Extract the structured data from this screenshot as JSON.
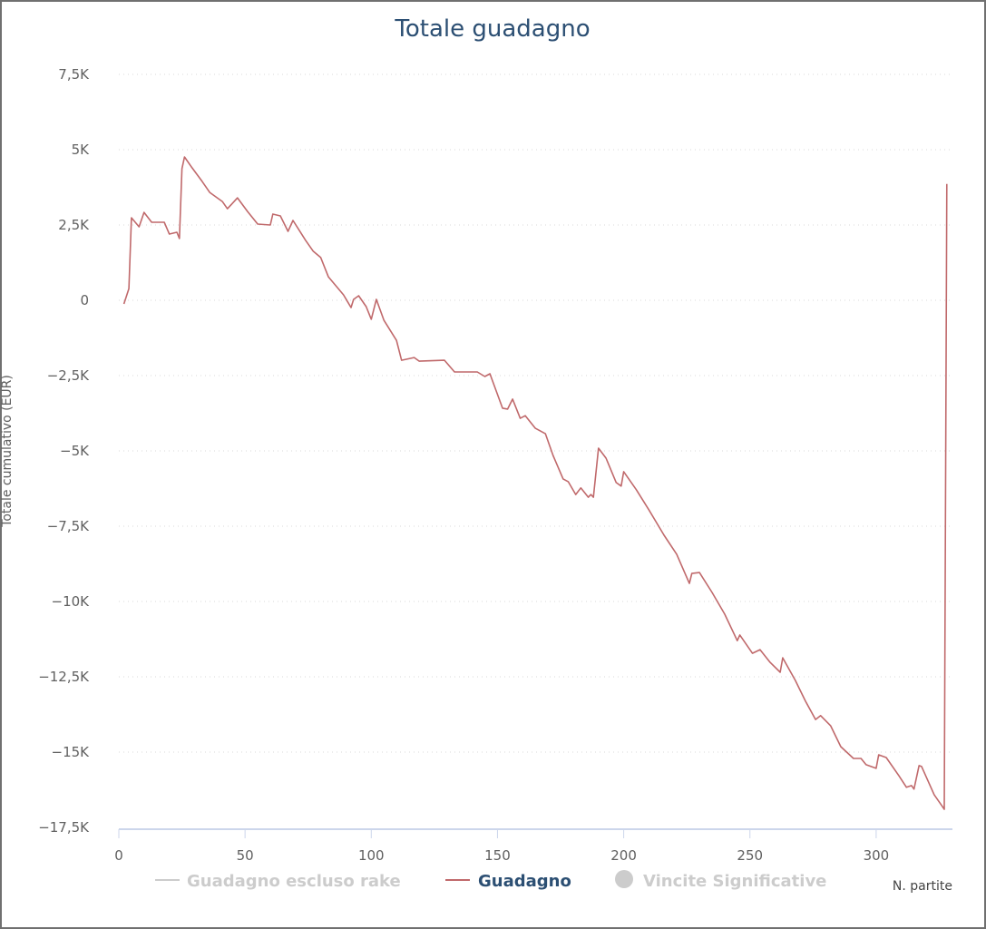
{
  "chart_data": {
    "type": "line",
    "title": "Totale guadagno",
    "xlabel": "N. partite",
    "ylabel": "Totale cumulativo (EUR)",
    "xlim": [
      0,
      330
    ],
    "ylim": [
      -17500,
      7500
    ],
    "x_ticks": [
      0,
      50,
      100,
      150,
      200,
      250,
      300
    ],
    "x_tick_labels": [
      "0",
      "50",
      "100",
      "150",
      "200",
      "250",
      "300"
    ],
    "y_ticks": [
      7500,
      5000,
      2500,
      0,
      -2500,
      -5000,
      -7500,
      -10000,
      -12500,
      -15000,
      -17500
    ],
    "y_tick_labels": [
      "7,5K",
      "5K",
      "2,5K",
      "0",
      "−2,5K",
      "−5K",
      "−7,5K",
      "−10K",
      "−12,5K",
      "−15K",
      "−17,5K"
    ],
    "grid": "horizontal dotted",
    "legend_position": "bottom",
    "legend": [
      {
        "name": "Guadagno escluso rake",
        "visible": false,
        "color": "#cccccc",
        "symbol": "line"
      },
      {
        "name": "Guadagno",
        "visible": true,
        "color": "#c0696b",
        "symbol": "line"
      },
      {
        "name": "Vincite Significative",
        "visible": false,
        "color": "#cccccc",
        "symbol": "circle"
      }
    ],
    "series": [
      {
        "name": "Guadagno",
        "color": "#c0696b",
        "x": [
          2,
          4,
          5,
          8,
          10,
          13,
          18,
          20,
          23,
          24,
          25,
          26,
          29,
          33,
          36,
          41,
          43,
          47,
          51,
          55,
          60,
          61,
          64,
          67,
          69,
          74,
          77,
          80,
          83,
          89,
          92,
          93,
          95,
          98,
          100,
          102,
          105,
          110,
          112,
          117,
          119,
          129,
          133,
          142,
          145,
          147,
          152,
          154,
          156,
          159,
          161,
          165,
          169,
          172,
          176,
          178,
          181,
          183,
          186,
          187,
          188,
          190,
          193,
          197,
          199,
          200,
          205,
          210,
          216,
          221,
          226,
          227,
          230,
          235,
          240,
          245,
          246,
          251,
          254,
          258,
          262,
          263,
          268,
          272,
          276,
          278,
          282,
          286,
          291,
          294,
          296,
          300,
          301,
          304,
          309,
          312,
          314,
          315,
          317,
          318,
          323,
          326,
          327,
          328
        ],
        "y": [
          -120,
          390,
          2740,
          2440,
          2920,
          2590,
          2590,
          2200,
          2260,
          2050,
          4370,
          4760,
          4400,
          3950,
          3580,
          3280,
          3040,
          3400,
          2950,
          2530,
          2500,
          2860,
          2800,
          2290,
          2650,
          1990,
          1630,
          1420,
          780,
          180,
          -240,
          30,
          150,
          -210,
          -630,
          30,
          -660,
          -1330,
          -1990,
          -1900,
          -2020,
          -1990,
          -2380,
          -2380,
          -2530,
          -2440,
          -3580,
          -3610,
          -3280,
          -3920,
          -3830,
          -4250,
          -4430,
          -5150,
          -5930,
          -6020,
          -6450,
          -6230,
          -6540,
          -6450,
          -6540,
          -4910,
          -5240,
          -6050,
          -6170,
          -5690,
          -6290,
          -6960,
          -7800,
          -8430,
          -9400,
          -9070,
          -9040,
          -9700,
          -10420,
          -11300,
          -11110,
          -11720,
          -11600,
          -12020,
          -12350,
          -11870,
          -12620,
          -13310,
          -13920,
          -13790,
          -14130,
          -14820,
          -15210,
          -15210,
          -15420,
          -15540,
          -15090,
          -15180,
          -15780,
          -16170,
          -16110,
          -16230,
          -15450,
          -15480,
          -16420,
          -16780,
          -16900,
          3860
        ]
      }
    ]
  },
  "colors": {
    "title": "#2c4f73",
    "series": "#c0696b",
    "legend_active": "#2c4f73",
    "legend_inactive": "#cccccc"
  }
}
